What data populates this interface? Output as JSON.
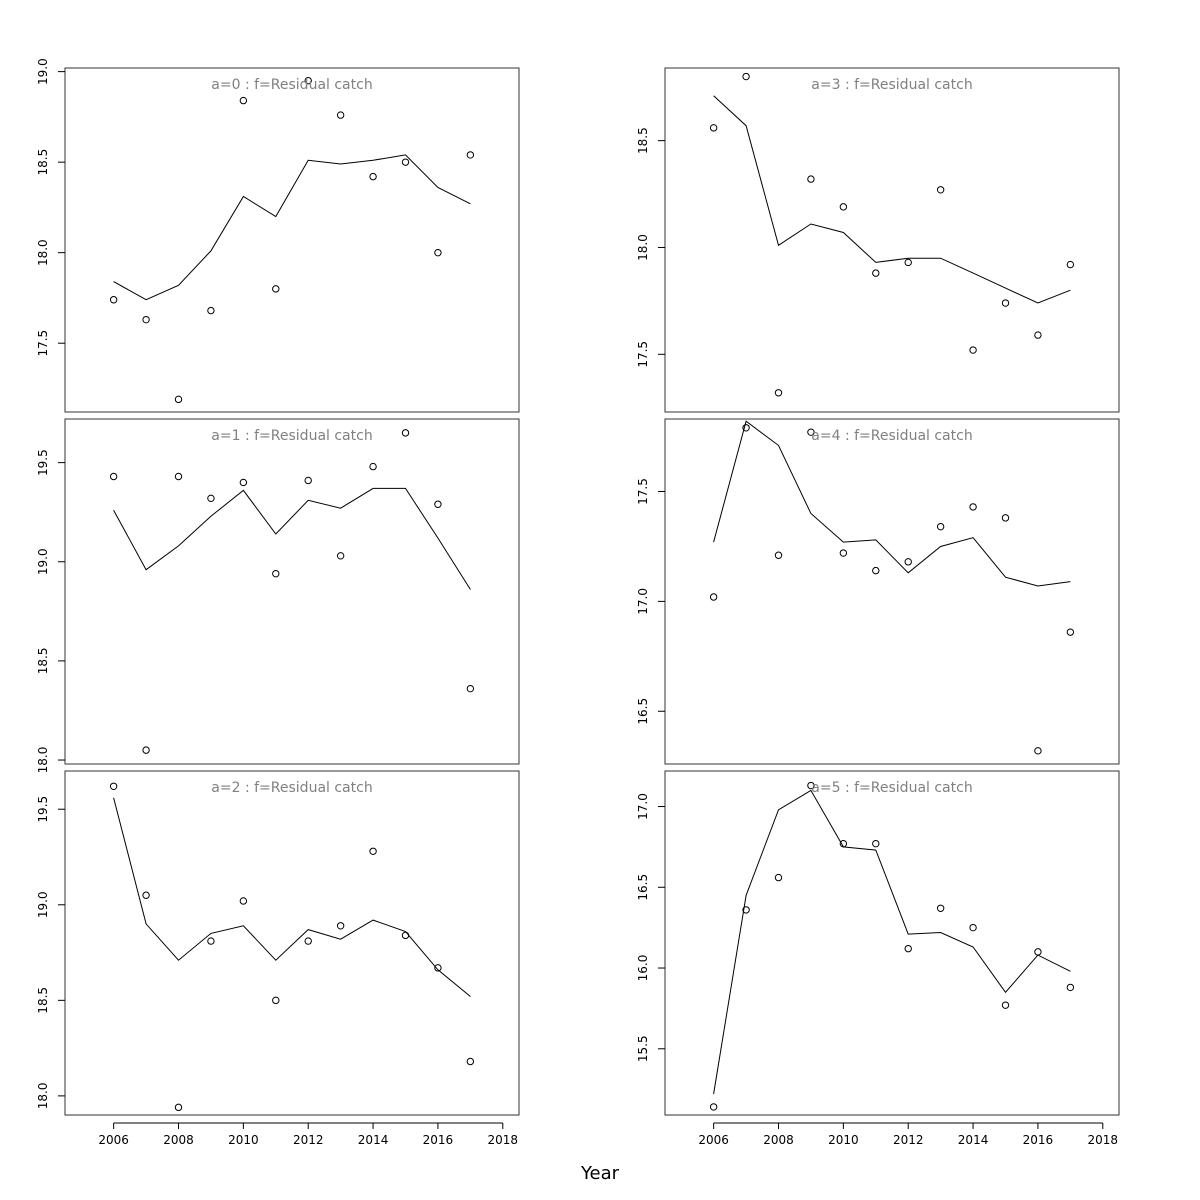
{
  "chart_data": {
    "type": "scatter",
    "xlabel": "Year",
    "xlim": [
      2004.5,
      2018.5
    ],
    "xticks": [
      2006,
      2008,
      2010,
      2012,
      2014,
      2016,
      2018
    ],
    "panels": [
      {
        "title": "a=0  :  f=Residual catch",
        "ylim": [
          17.12,
          19.02
        ],
        "yticks": [
          17.5,
          18.0,
          18.5,
          19.0
        ],
        "series": [
          {
            "kind": "points",
            "x": [
              2006,
              2007,
              2008,
              2009,
              2010,
              2011,
              2012,
              2013,
              2014,
              2015,
              2016,
              2017
            ],
            "y": [
              17.74,
              17.63,
              17.19,
              17.68,
              18.84,
              17.8,
              18.95,
              18.76,
              18.42,
              18.5,
              18.0,
              18.54
            ]
          },
          {
            "kind": "line",
            "x": [
              2006,
              2007,
              2008,
              2009,
              2010,
              2011,
              2012,
              2013,
              2014,
              2015,
              2016,
              2017
            ],
            "y": [
              17.84,
              17.74,
              17.82,
              18.01,
              18.31,
              18.2,
              18.51,
              18.49,
              18.51,
              18.54,
              18.36,
              18.27
            ]
          }
        ]
      },
      {
        "title": "a=1  :  f=Residual catch",
        "ylim": [
          17.98,
          19.72
        ],
        "yticks": [
          18.0,
          18.5,
          19.0,
          19.5
        ],
        "series": [
          {
            "kind": "points",
            "x": [
              2006,
              2007,
              2008,
              2009,
              2010,
              2011,
              2012,
              2013,
              2014,
              2015,
              2016,
              2017
            ],
            "y": [
              19.43,
              18.05,
              19.43,
              19.32,
              19.4,
              18.94,
              19.41,
              19.03,
              19.48,
              19.65,
              19.29,
              18.36
            ]
          },
          {
            "kind": "line",
            "x": [
              2006,
              2007,
              2008,
              2009,
              2010,
              2011,
              2012,
              2013,
              2014,
              2015,
              2016,
              2017
            ],
            "y": [
              19.26,
              18.96,
              19.08,
              19.23,
              19.36,
              19.14,
              19.31,
              19.27,
              19.37,
              19.37,
              19.12,
              18.86
            ]
          }
        ]
      },
      {
        "title": "a=2  :  f=Residual catch",
        "ylim": [
          17.9,
          19.7
        ],
        "yticks": [
          18.0,
          18.5,
          19.0,
          19.5
        ],
        "series": [
          {
            "kind": "points",
            "x": [
              2006,
              2007,
              2008,
              2009,
              2010,
              2011,
              2012,
              2013,
              2014,
              2015,
              2016,
              2017
            ],
            "y": [
              19.62,
              19.05,
              17.94,
              18.81,
              19.02,
              18.5,
              18.81,
              18.89,
              19.28,
              18.84,
              18.67,
              18.18
            ]
          },
          {
            "kind": "line",
            "x": [
              2006,
              2007,
              2008,
              2009,
              2010,
              2011,
              2012,
              2013,
              2014,
              2015,
              2016,
              2017
            ],
            "y": [
              19.56,
              18.9,
              18.71,
              18.85,
              18.89,
              18.71,
              18.87,
              18.82,
              18.92,
              18.86,
              18.66,
              18.52
            ]
          }
        ]
      },
      {
        "title": "a=3  :  f=Residual catch",
        "ylim": [
          17.23,
          18.84
        ],
        "yticks": [
          17.5,
          18.0,
          18.5
        ],
        "series": [
          {
            "kind": "points",
            "x": [
              2006,
              2007,
              2008,
              2009,
              2010,
              2011,
              2012,
              2013,
              2014,
              2015,
              2016,
              2017
            ],
            "y": [
              18.56,
              18.8,
              17.32,
              18.32,
              18.19,
              17.88,
              17.93,
              18.27,
              17.52,
              17.74,
              17.59,
              17.92
            ]
          },
          {
            "kind": "line",
            "x": [
              2006,
              2007,
              2008,
              2009,
              2010,
              2011,
              2012,
              2013,
              2014,
              2015,
              2016,
              2017
            ],
            "y": [
              18.71,
              18.57,
              18.01,
              18.11,
              18.07,
              17.93,
              17.95,
              17.95,
              17.88,
              17.81,
              17.74,
              17.8
            ]
          }
        ]
      },
      {
        "title": "a=4  :  f=Residual catch",
        "ylim": [
          16.26,
          17.83
        ],
        "yticks": [
          16.5,
          17.0,
          17.5
        ],
        "series": [
          {
            "kind": "points",
            "x": [
              2006,
              2007,
              2008,
              2009,
              2010,
              2011,
              2012,
              2013,
              2014,
              2015,
              2016,
              2017
            ],
            "y": [
              17.02,
              17.79,
              17.21,
              17.77,
              17.22,
              17.14,
              17.18,
              17.34,
              17.43,
              17.38,
              16.32,
              16.86
            ]
          },
          {
            "kind": "line",
            "x": [
              2006,
              2007,
              2008,
              2009,
              2010,
              2011,
              2012,
              2013,
              2014,
              2015,
              2016,
              2017
            ],
            "y": [
              17.27,
              17.82,
              17.71,
              17.4,
              17.27,
              17.28,
              17.13,
              17.25,
              17.29,
              17.11,
              17.07,
              17.09
            ]
          }
        ]
      },
      {
        "title": "a=5  :  f=Residual catch",
        "ylim": [
          15.09,
          17.22
        ],
        "yticks": [
          15.5,
          16.0,
          16.5,
          17.0
        ],
        "series": [
          {
            "kind": "points",
            "x": [
              2006,
              2007,
              2008,
              2009,
              2010,
              2011,
              2012,
              2013,
              2014,
              2015,
              2016,
              2017
            ],
            "y": [
              15.14,
              16.36,
              16.56,
              17.13,
              16.77,
              16.77,
              16.12,
              16.37,
              16.25,
              15.77,
              16.1,
              15.88
            ]
          },
          {
            "kind": "line",
            "x": [
              2006,
              2007,
              2008,
              2009,
              2010,
              2011,
              2012,
              2013,
              2014,
              2015,
              2016,
              2017
            ],
            "y": [
              15.22,
              16.45,
              16.98,
              17.1,
              16.75,
              16.73,
              16.21,
              16.22,
              16.13,
              15.85,
              16.08,
              15.98
            ]
          }
        ]
      }
    ]
  }
}
